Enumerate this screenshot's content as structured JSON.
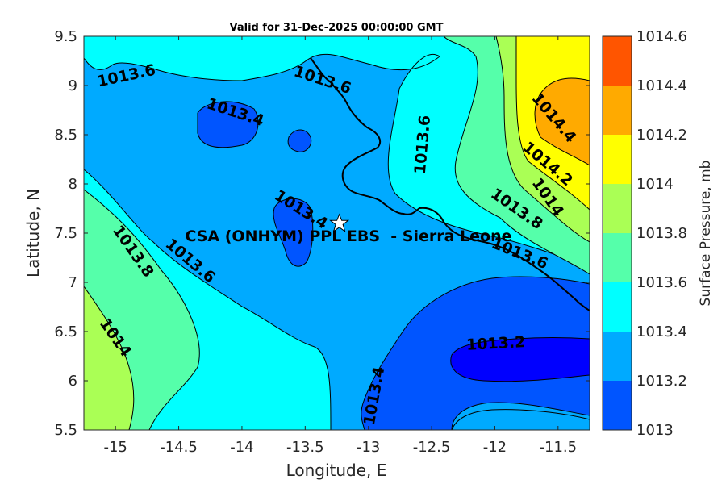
{
  "title": "Valid for 31-Dec-2025 00:00:00 GMT",
  "xlabel": "Longitude, E",
  "ylabel": "Latitude, N",
  "colorbar_label": "Surface Pressure, mb",
  "site_label": "CSA (ONHYM) PPL EBS  - Sierra Leone",
  "site_lon": -13.23,
  "site_lat": 7.6,
  "x_ticks": [
    "-15",
    "-14.5",
    "-14",
    "-13.5",
    "-13",
    "-12.5",
    "-12",
    "-11.5"
  ],
  "y_ticks": [
    "9.5",
    "9",
    "8.5",
    "8",
    "7.5",
    "7",
    "6.5",
    "6",
    "5.5"
  ],
  "colorbar_levels": [
    {
      "label": "1014.6",
      "color": "#ff5500"
    },
    {
      "label": "1014.4",
      "color": "#ffaa00"
    },
    {
      "label": "1014.2",
      "color": "#ffff00"
    },
    {
      "label": "1014",
      "color": "#aaff55"
    },
    {
      "label": "1013.8",
      "color": "#55ffaa"
    },
    {
      "label": "1013.6",
      "color": "#00ffff"
    },
    {
      "label": "1013.4",
      "color": "#00aaff"
    },
    {
      "label": "1013.2",
      "color": "#0055ff"
    },
    {
      "label": "1013",
      "color": "#0000ff"
    }
  ],
  "contour_labels": {
    "nw_1013_6": "1013.6",
    "n_1013_4": "1013.4",
    "n_1013_6": "1013.6",
    "ne_1013_6": "1013.6",
    "e_1014_4": "1014.4",
    "e_1014_2": "1014.2",
    "e_1014": "1014",
    "e_1013_8": "1013.8",
    "c_1013_4": "1013.4",
    "sw_1013_8": "1013.8",
    "sw_1013_6": "1013.6",
    "se_1013_6": "1013.6",
    "sw_1014": "1014",
    "s_1013_2": "1013.2",
    "s_1013_4": "1013.4"
  },
  "chart_data": {
    "type": "heatmap",
    "title": "Valid for 31-Dec-2025 00:00:00 GMT",
    "xlabel": "Longitude, E",
    "ylabel": "Latitude, N",
    "xlim": [
      -15.25,
      -11.25
    ],
    "ylim": [
      5.5,
      9.5
    ],
    "colorbar": {
      "label": "Surface Pressure, mb",
      "range": [
        1013,
        1014.6
      ],
      "step": 0.2
    },
    "contour_levels": [
      1013.2,
      1013.4,
      1013.6,
      1013.8,
      1014,
      1014.2,
      1014.4
    ],
    "marker": {
      "name": "CSA (ONHYM) PPL EBS  - Sierra Leone",
      "lon": -13.23,
      "lat": 7.6
    }
  }
}
